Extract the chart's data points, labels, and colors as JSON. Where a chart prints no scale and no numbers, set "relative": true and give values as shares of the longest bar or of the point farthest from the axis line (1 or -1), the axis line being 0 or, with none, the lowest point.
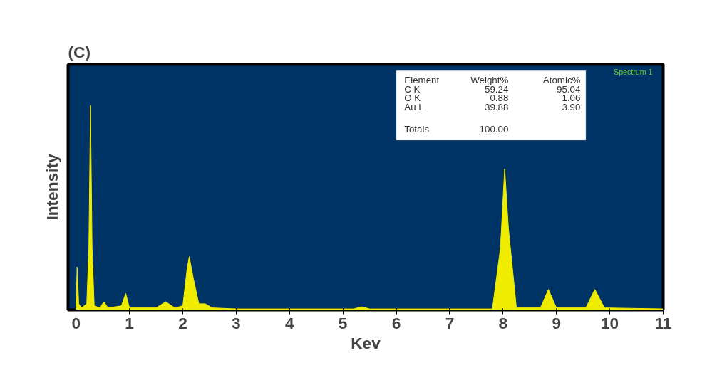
{
  "chart_data": {
    "type": "area",
    "title": "(C)",
    "xlabel": "Kev",
    "ylabel": "Intensity",
    "relative": true,
    "xlim": [
      -0.15,
      11.0
    ],
    "xticks": [
      0,
      1,
      2,
      3,
      4,
      5,
      6,
      7,
      8,
      9,
      10,
      11
    ],
    "grid": false,
    "x": [
      0,
      0.02,
      0.05,
      0.1,
      0.2,
      0.24,
      0.27,
      0.3,
      0.34,
      0.45,
      0.52,
      0.6,
      0.85,
      0.93,
      1.0,
      1.5,
      1.68,
      1.85,
      2.0,
      2.08,
      2.12,
      2.2,
      2.3,
      2.42,
      2.55,
      3.0,
      5.2,
      5.35,
      5.5,
      7.8,
      7.95,
      8.03,
      8.1,
      8.25,
      8.7,
      8.85,
      9.0,
      9.55,
      9.72,
      9.9,
      11.0
    ],
    "series": [
      {
        "color": "#f0ec00",
        "values": [
          0.01,
          0.21,
          0.03,
          0.01,
          0.03,
          0.3,
          1.0,
          0.3,
          0.02,
          0.01,
          0.04,
          0.01,
          0.02,
          0.08,
          0.01,
          0.01,
          0.04,
          0.01,
          0.02,
          0.2,
          0.26,
          0.15,
          0.03,
          0.03,
          0.01,
          0.005,
          0.005,
          0.015,
          0.005,
          0.005,
          0.3,
          0.69,
          0.4,
          0.01,
          0.01,
          0.1,
          0.01,
          0.01,
          0.1,
          0.01,
          0.005
        ]
      }
    ],
    "annotations": [
      "Spectrum 1",
      "Element",
      "Weight%",
      "Atomic%",
      "C K",
      "59.24",
      "95.04",
      "O K",
      "0.88",
      "1.06",
      "Au L",
      "39.88",
      "3.90",
      "Totals",
      "100.00"
    ]
  }
}
